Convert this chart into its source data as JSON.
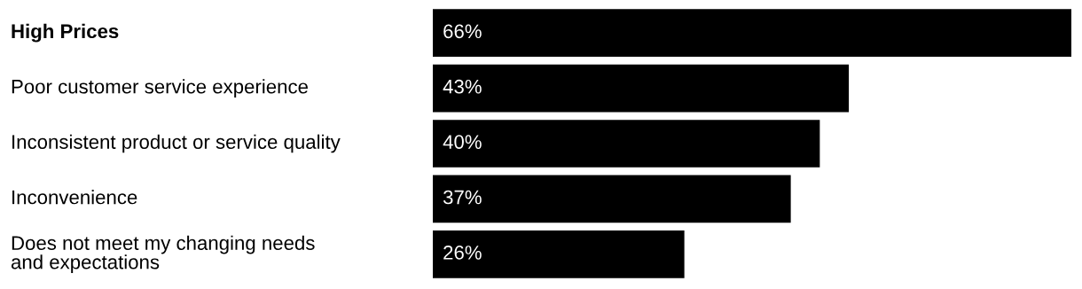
{
  "chart_data": {
    "type": "bar",
    "orientation": "horizontal",
    "categories": [
      "High Prices",
      "Poor customer service experience",
      "Inconsistent product or service quality",
      "Inconvenience",
      "Does not meet my changing needs\nand expectations"
    ],
    "values": [
      66,
      43,
      40,
      37,
      26
    ],
    "value_labels": [
      "66%",
      "43%",
      "40%",
      "37%",
      "26%"
    ],
    "color": "#000000"
  }
}
